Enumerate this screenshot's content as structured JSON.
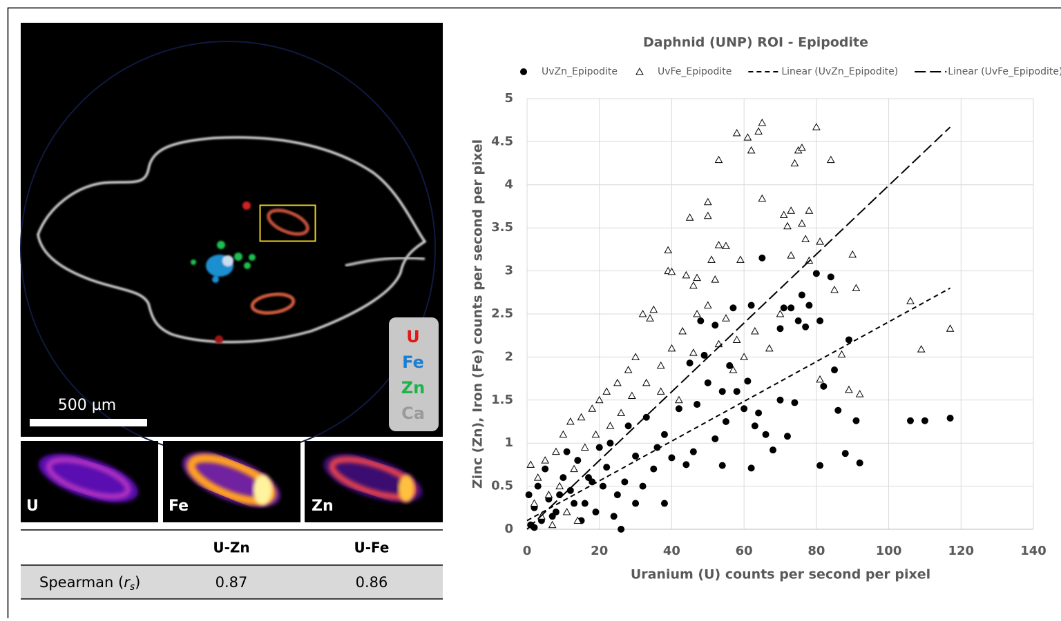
{
  "image": {
    "scale_bar": "500 µm",
    "channels": [
      "U",
      "Fe",
      "Zn",
      "Ca"
    ],
    "panels": [
      "U",
      "Fe",
      "Zn"
    ]
  },
  "table": {
    "columns": [
      "U-Zn",
      "U-Fe"
    ],
    "rows": [
      {
        "label": [
          "Spearman (",
          "r",
          "s",
          ")"
        ],
        "values": [
          0.87,
          0.86
        ]
      }
    ]
  },
  "chart_data": {
    "type": "scatter",
    "title": "Daphnid (UNP) ROI - Epipodite",
    "x_label": "Uranium (U) counts per second per pixel",
    "y_label": "Zinc (Zn), Iron (Fe) counts per second per pixel",
    "xlim": [
      0,
      140
    ],
    "xticks": [
      0,
      20,
      40,
      60,
      80,
      100,
      120,
      140
    ],
    "ylim": [
      0,
      5
    ],
    "yticks": [
      0,
      0.5,
      1,
      1.5,
      2,
      2.5,
      3,
      3.5,
      4,
      4.5,
      5
    ],
    "grid": true,
    "legend": "top",
    "series": [
      {
        "name": "UvZn_Epipodite",
        "marker": "circle",
        "color": "#000000",
        "x": [
          65,
          84,
          80,
          76,
          73,
          78,
          71,
          81,
          77,
          75,
          70,
          89,
          85,
          82,
          86,
          91,
          106,
          110,
          117,
          92,
          88,
          81,
          62,
          54,
          26,
          48,
          52,
          57,
          62,
          49,
          45,
          50,
          58,
          60,
          63,
          66,
          70,
          74,
          72,
          68,
          55,
          52,
          46,
          44,
          40,
          38,
          35,
          32,
          30,
          27,
          25,
          22,
          20,
          18,
          16,
          14,
          12,
          10,
          8,
          6,
          4,
          2,
          1,
          3,
          5,
          7,
          9,
          11,
          13,
          15,
          17,
          19,
          21,
          23,
          28,
          33,
          36,
          42,
          47,
          54,
          56,
          61,
          64,
          38,
          30,
          24,
          0.5,
          2
        ],
        "values": [
          3.15,
          2.93,
          2.97,
          2.72,
          2.57,
          2.6,
          2.57,
          2.42,
          2.35,
          2.42,
          2.33,
          2.2,
          1.85,
          1.66,
          1.38,
          1.26,
          1.26,
          1.26,
          1.29,
          0.77,
          0.88,
          0.74,
          0.71,
          0.74,
          0,
          2.42,
          2.37,
          2.57,
          2.6,
          2.02,
          1.93,
          1.7,
          1.6,
          1.4,
          1.2,
          1.1,
          1.5,
          1.47,
          1.08,
          0.92,
          1.25,
          1.05,
          0.9,
          0.75,
          0.83,
          1.1,
          0.7,
          0.5,
          0.85,
          0.55,
          0.4,
          0.72,
          0.95,
          0.55,
          0.3,
          0.8,
          0.45,
          0.6,
          0.2,
          0.35,
          0.1,
          0.25,
          0.05,
          0.5,
          0.7,
          0.15,
          0.4,
          0.9,
          0.3,
          0.1,
          0.6,
          0.2,
          0.5,
          1.0,
          1.2,
          1.3,
          0.95,
          1.4,
          1.45,
          1.6,
          1.9,
          1.72,
          1.35,
          0.3,
          0.3,
          0.15,
          0.4,
          0.02
        ]
      },
      {
        "name": "UvFe_Epipodite",
        "marker": "triangle",
        "color": "#000000",
        "x": [
          65,
          64,
          61,
          58,
          62,
          80,
          75,
          76,
          74,
          84,
          53,
          65,
          50,
          50,
          45,
          73,
          71,
          78,
          76,
          72,
          77,
          81,
          53,
          55,
          39,
          90,
          73,
          59,
          51,
          78,
          39,
          40,
          44,
          47,
          52,
          46,
          91,
          85,
          106,
          117,
          109,
          87,
          81,
          89,
          92,
          34,
          32,
          35,
          30,
          28,
          25,
          22,
          20,
          18,
          15,
          12,
          10,
          8,
          5,
          3,
          1,
          2,
          6,
          9,
          13,
          16,
          19,
          23,
          26,
          29,
          33,
          37,
          40,
          43,
          47,
          50,
          55,
          58,
          60,
          63,
          67,
          70,
          37,
          42,
          46,
          53,
          57,
          14,
          7,
          11,
          4
        ],
        "values": [
          4.72,
          4.62,
          4.55,
          4.6,
          4.4,
          4.67,
          4.4,
          4.43,
          4.25,
          4.29,
          4.29,
          3.84,
          3.8,
          3.64,
          3.62,
          3.7,
          3.65,
          3.7,
          3.55,
          3.52,
          3.37,
          3.34,
          3.3,
          3.29,
          3.24,
          3.19,
          3.18,
          3.13,
          3.13,
          3.12,
          3.0,
          2.99,
          2.95,
          2.92,
          2.9,
          2.83,
          2.8,
          2.78,
          2.65,
          2.33,
          2.09,
          2.03,
          1.74,
          1.62,
          1.57,
          2.45,
          2.5,
          2.55,
          2.0,
          1.85,
          1.7,
          1.6,
          1.5,
          1.4,
          1.3,
          1.25,
          1.1,
          0.9,
          0.8,
          0.6,
          0.75,
          0.3,
          0.4,
          0.5,
          0.7,
          0.95,
          1.1,
          1.2,
          1.35,
          1.55,
          1.7,
          1.9,
          2.1,
          2.3,
          2.5,
          2.6,
          2.45,
          2.2,
          2.0,
          2.3,
          2.1,
          2.5,
          1.6,
          1.5,
          2.05,
          2.15,
          1.85,
          0.1,
          0.05,
          0.2,
          0.15
        ]
      },
      {
        "name": "Linear (UvZn_Epipodite)",
        "dash": "short",
        "color": "#000000",
        "x": [
          0,
          117
        ],
        "values": [
          0.1,
          2.8
        ]
      },
      {
        "name": "Linear (UvFe_Epipodite)",
        "dash": "long",
        "color": "#000000",
        "x": [
          0,
          117
        ],
        "values": [
          0.0,
          4.67
        ]
      }
    ]
  }
}
